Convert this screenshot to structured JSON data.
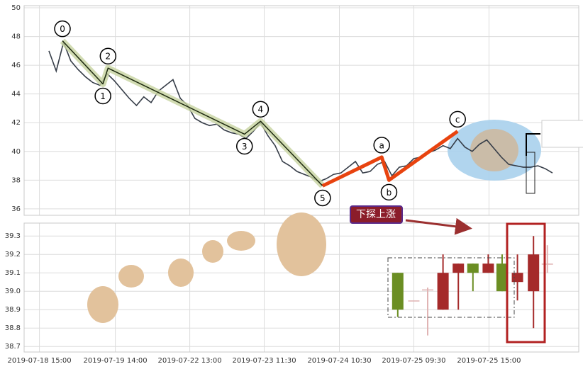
{
  "chart_data": [
    {
      "type": "line",
      "x": [
        0,
        1,
        2,
        3,
        4,
        5,
        6,
        7,
        8,
        9,
        10,
        11,
        12,
        13,
        14,
        15,
        16,
        17,
        18,
        19,
        20,
        21,
        22,
        23,
        24,
        25,
        26,
        27,
        28,
        29,
        30,
        31,
        32,
        33,
        34,
        35,
        36,
        37,
        38,
        39,
        40,
        41,
        42,
        43,
        44,
        45,
        46,
        47,
        48,
        49,
        50,
        51,
        52,
        53,
        54,
        55,
        56,
        57,
        58,
        59,
        60,
        61,
        62,
        63,
        64,
        65,
        66,
        67,
        68,
        69
      ],
      "values": [
        47.0,
        45.6,
        47.6,
        46.3,
        45.7,
        45.2,
        44.8,
        44.6,
        45.4,
        44.9,
        44.3,
        43.7,
        43.2,
        43.8,
        43.4,
        44.2,
        44.6,
        45.0,
        43.7,
        43.2,
        42.3,
        42.0,
        41.8,
        41.9,
        41.5,
        41.3,
        41.2,
        40.9,
        41.4,
        42.0,
        41.1,
        40.4,
        39.3,
        39.0,
        38.6,
        38.4,
        38.2,
        37.9,
        38.1,
        38.4,
        38.5,
        38.9,
        39.3,
        38.5,
        38.6,
        39.1,
        39.3,
        38.3,
        38.9,
        39.0,
        39.5,
        39.6,
        39.9,
        40.1,
        40.4,
        40.2,
        40.9,
        40.3,
        40.0,
        40.5,
        40.8,
        40.2,
        39.6,
        39.1,
        39.0,
        38.9,
        38.9,
        39.0,
        38.8,
        38.5
      ],
      "color": "#363d48",
      "xlim": [
        -3.4,
        72.6
      ],
      "ylim": [
        35.55,
        50.15
      ],
      "yticks": [
        36,
        38,
        40,
        42,
        44,
        46,
        48,
        50
      ],
      "grid": true,
      "waves": [
        {
          "label": "0",
          "x": 1.85,
          "y": 47.7
        },
        {
          "label": "1",
          "x": 7.4,
          "y": 44.7
        },
        {
          "label": "2",
          "x": 8.1,
          "y": 45.8
        },
        {
          "label": "3",
          "x": 26.8,
          "y": 41.2
        },
        {
          "label": "4",
          "x": 29.0,
          "y": 42.1
        },
        {
          "label": "5",
          "x": 37.5,
          "y": 37.6
        },
        {
          "label": "a",
          "x": 45.6,
          "y": 39.6
        },
        {
          "label": "b",
          "x": 46.6,
          "y": 38.0
        },
        {
          "label": "c",
          "x": 56.0,
          "y": 41.4
        }
      ],
      "impulse_color": "#1e2a10",
      "correction_color": "#e8430f"
    },
    {
      "type": "candlestick",
      "x": [
        47.8,
        50.0,
        51.9,
        54.0,
        56.1,
        58.1,
        60.2,
        62.1,
        64.2,
        66.4,
        68.3
      ],
      "open": [
        39.1,
        38.95,
        39.01,
        38.9,
        39.1,
        39.15,
        39.1,
        39.15,
        39.05,
        39.0,
        39.15
      ],
      "high": [
        39.1,
        38.95,
        39.02,
        39.2,
        39.15,
        39.15,
        39.2,
        39.2,
        39.2,
        39.3,
        39.25
      ],
      "low": [
        38.86,
        38.95,
        38.76,
        38.9,
        38.9,
        39.0,
        39.1,
        39.0,
        38.95,
        38.8,
        39.1
      ],
      "close": [
        38.9,
        38.95,
        39.01,
        39.1,
        39.15,
        39.1,
        39.15,
        39.0,
        39.1,
        39.2,
        39.15
      ],
      "up_color": "#a52a2a",
      "down_color": "#6b8e23",
      "flat_color": "#e0b4b4",
      "xlim": [
        -3.4,
        72.6
      ],
      "ylim": [
        38.67,
        39.37
      ],
      "yticks": [
        38.7,
        38.8,
        38.9,
        {
          "value": 39,
          "label": "39.0"
        },
        39.1,
        39.2,
        39.3
      ],
      "xticks": [
        {
          "value": -1.3,
          "label": "2019-07-18 15:00"
        },
        {
          "value": 9.1,
          "label": "2019-07-19 14:00"
        },
        {
          "value": 19.3,
          "label": "2019-07-22 13:00"
        },
        {
          "value": 29.5,
          "label": "2019-07-23 11:30"
        },
        {
          "value": 39.8,
          "label": "2019-07-24 10:30"
        },
        {
          "value": 50,
          "label": "2019-07-25 09:30"
        },
        {
          "value": 60.3,
          "label": "2019-07-25 15:00"
        }
      ],
      "grid": true,
      "annotation": "下探上涨"
    }
  ]
}
